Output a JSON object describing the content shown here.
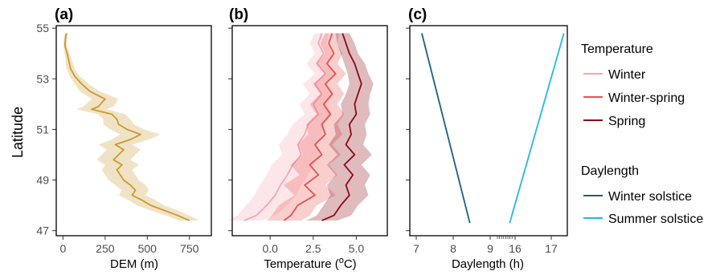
{
  "figure": {
    "ylabel": "Latitude",
    "y_ticks": [
      47,
      49,
      51,
      53,
      55
    ]
  },
  "panels": {
    "a": {
      "tag": "(a)",
      "xlabel": "DEM (m)",
      "x_ticks": [
        "0",
        "250",
        "500",
        "750"
      ]
    },
    "b": {
      "tag": "(b)",
      "xlabel_main": "Temperature (",
      "xlabel_sup": "o",
      "xlabel_end": "C)",
      "x_ticks": [
        "0.0",
        "2.5",
        "5.0"
      ]
    },
    "c": {
      "tag": "(c)",
      "xlabel": "Daylength (h)",
      "x_ticks": [
        "7",
        "8",
        "9",
        "16",
        "17"
      ]
    }
  },
  "legend": {
    "temperature": {
      "title": "Temperature",
      "items": [
        {
          "label": "Winter",
          "color": "#f4a6b0"
        },
        {
          "label": "Winter-spring",
          "color": "#e8524f"
        },
        {
          "label": "Spring",
          "color": "#8b0a14"
        }
      ]
    },
    "daylength": {
      "title": "Daylength",
      "items": [
        {
          "label": "Winter solstice",
          "color": "#1b5f82"
        },
        {
          "label": "Summer solstice",
          "color": "#26b8e0"
        }
      ]
    }
  },
  "chart_data": [
    {
      "panel": "a",
      "type": "line",
      "xlabel": "DEM (m)",
      "ylabel": "Latitude",
      "xlim": [
        -40,
        880
      ],
      "ylim": [
        46.8,
        55.1
      ],
      "ribbon": true,
      "color": "#c99a2e",
      "series": [
        {
          "y": [
            54.8,
            54.6,
            54.3,
            54.0,
            53.7,
            53.4,
            53.1,
            52.8,
            52.5,
            52.2,
            51.9,
            51.8,
            51.6,
            51.4,
            51.2,
            51.0,
            50.8,
            50.6,
            50.4,
            50.2,
            50.0,
            49.8,
            49.6,
            49.4,
            49.2,
            49.0,
            48.8,
            48.6,
            48.4,
            48.2,
            48.0,
            47.8,
            47.6,
            47.4
          ],
          "x": [
            20,
            15,
            12,
            25,
            35,
            45,
            70,
            110,
            160,
            250,
            210,
            170,
            290,
            320,
            330,
            380,
            460,
            400,
            310,
            360,
            330,
            300,
            350,
            320,
            340,
            360,
            400,
            430,
            410,
            470,
            520,
            600,
            680,
            750
          ],
          "spread": [
            10,
            10,
            10,
            15,
            20,
            25,
            30,
            40,
            60,
            80,
            90,
            90,
            80,
            80,
            90,
            100,
            120,
            110,
            100,
            100,
            100,
            100,
            100,
            90,
            90,
            90,
            90,
            80,
            80,
            80,
            80,
            80,
            70,
            60
          ]
        }
      ]
    },
    {
      "panel": "b",
      "type": "line",
      "xlabel": "Temperature (oC)",
      "ylabel": "Latitude",
      "xlim": [
        -2.2,
        6.8
      ],
      "ylim": [
        46.8,
        55.1
      ],
      "ribbon": true,
      "series": [
        {
          "name": "Winter",
          "color": "#f4a6b0",
          "y": [
            54.8,
            54.4,
            54.0,
            53.6,
            53.2,
            52.8,
            52.4,
            52.0,
            51.6,
            51.2,
            50.8,
            50.4,
            50.0,
            49.6,
            49.2,
            48.8,
            48.4,
            48.0,
            47.6,
            47.4
          ],
          "x": [
            3.0,
            2.8,
            3.1,
            2.7,
            3.2,
            2.6,
            3.0,
            2.5,
            2.8,
            2.2,
            2.0,
            1.6,
            1.8,
            1.3,
            1.0,
            0.6,
            0.3,
            -0.2,
            -0.8,
            -1.5
          ],
          "spread": [
            0.4,
            0.5,
            0.5,
            0.6,
            0.6,
            0.7,
            0.7,
            0.8,
            0.8,
            0.9,
            1.0,
            1.1,
            1.1,
            1.2,
            1.2,
            1.2,
            1.2,
            1.2,
            1.1,
            1.0
          ]
        },
        {
          "name": "Winter-spring",
          "color": "#e8524f",
          "y": [
            54.8,
            54.4,
            54.0,
            53.6,
            53.2,
            52.8,
            52.4,
            52.0,
            51.6,
            51.2,
            50.8,
            50.4,
            50.0,
            49.6,
            49.2,
            48.8,
            48.4,
            48.0,
            47.6,
            47.4
          ],
          "x": [
            3.6,
            3.4,
            3.7,
            3.3,
            3.8,
            3.2,
            3.6,
            3.1,
            3.5,
            3.0,
            3.2,
            2.6,
            3.0,
            2.3,
            2.8,
            2.0,
            2.6,
            1.6,
            1.2,
            0.8
          ],
          "spread": [
            0.4,
            0.5,
            0.5,
            0.6,
            0.6,
            0.7,
            0.7,
            0.8,
            0.8,
            0.9,
            1.0,
            1.0,
            1.1,
            1.1,
            1.1,
            1.2,
            1.2,
            1.1,
            1.1,
            1.0
          ]
        },
        {
          "name": "Spring",
          "color": "#8b0a14",
          "y": [
            54.8,
            54.4,
            54.0,
            53.6,
            53.2,
            52.8,
            52.4,
            52.0,
            51.6,
            51.2,
            50.8,
            50.4,
            50.0,
            49.6,
            49.2,
            48.8,
            48.4,
            48.0,
            47.6,
            47.4
          ],
          "x": [
            4.2,
            4.4,
            4.6,
            4.9,
            5.1,
            5.3,
            5.1,
            4.9,
            5.0,
            4.6,
            4.7,
            4.4,
            4.9,
            4.3,
            4.8,
            4.4,
            4.6,
            4.1,
            3.7,
            3.0
          ],
          "spread": [
            0.4,
            0.5,
            0.5,
            0.6,
            0.6,
            0.7,
            0.7,
            0.8,
            0.8,
            0.9,
            0.9,
            1.0,
            1.0,
            1.0,
            1.0,
            1.1,
            1.1,
            1.0,
            1.0,
            0.9
          ]
        }
      ]
    },
    {
      "panel": "c",
      "type": "line",
      "xlabel": "Daylength (h)",
      "ylabel": "Latitude",
      "axis_break": "between 9 and 16",
      "x_ticks": [
        7,
        8,
        9,
        16,
        17
      ],
      "ylim": [
        46.8,
        55.1
      ],
      "series": [
        {
          "name": "Winter solstice",
          "color": "#1b5f82",
          "x": [
            7.15,
            8.45
          ],
          "y": [
            54.8,
            47.3
          ]
        },
        {
          "name": "Summer solstice",
          "color": "#26b8e0",
          "x": [
            17.35,
            15.85
          ],
          "y": [
            54.8,
            47.3
          ]
        }
      ]
    }
  ]
}
